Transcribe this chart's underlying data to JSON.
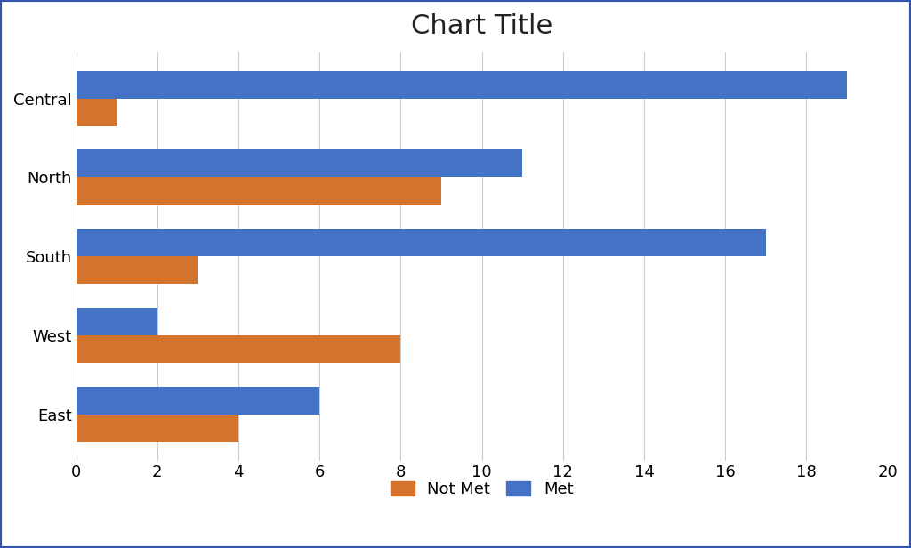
{
  "title": "Chart Title",
  "categories": [
    "Central",
    "North",
    "South",
    "West",
    "East"
  ],
  "not_met": [
    1,
    9,
    3,
    8,
    4
  ],
  "met": [
    19,
    11,
    17,
    2,
    6
  ],
  "not_met_color": "#D4742C",
  "met_color": "#4472C4",
  "xlim": [
    0,
    20
  ],
  "xticks": [
    0,
    2,
    4,
    6,
    8,
    10,
    12,
    14,
    16,
    18,
    20
  ],
  "bar_height": 0.35,
  "title_fontsize": 22,
  "tick_fontsize": 13,
  "legend_fontsize": 13,
  "background_color": "#FFFFFF",
  "grid_color": "#CCCCCC",
  "border_color": "#3355AA",
  "legend_labels": [
    "Not Met",
    "Met"
  ]
}
